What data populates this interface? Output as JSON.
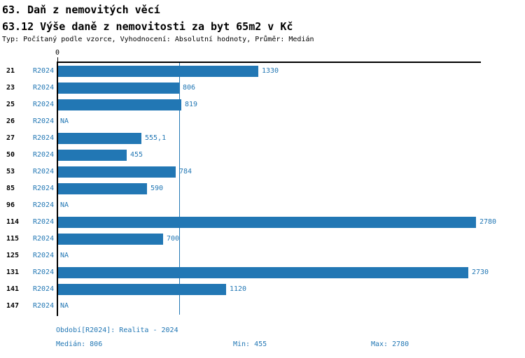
{
  "header": {
    "title1": "63. Daň z nemovitých věcí",
    "title2": "63.12 Výše daně z nemovitosti za byt 65m2 v Kč",
    "meta": "Typ: Počítaný podle vzorce, Vyhodnocení: Absolutní hodnoty, Průměr: Medián"
  },
  "chart_data": {
    "type": "bar",
    "orientation": "horizontal",
    "title": "63.12 Výše daně z nemovitosti za byt 65m2 v Kč",
    "series_label": "R2024",
    "categories": [
      "21",
      "23",
      "25",
      "26",
      "27",
      "50",
      "53",
      "85",
      "96",
      "114",
      "115",
      "125",
      "131",
      "141",
      "147"
    ],
    "values": [
      1330,
      806,
      819,
      null,
      555.1,
      455,
      784,
      590,
      null,
      2780,
      700,
      null,
      2730,
      1120,
      null
    ],
    "value_labels": [
      "1330",
      "806",
      "819",
      "NA",
      "555,1",
      "455",
      "784",
      "590",
      "NA",
      "2780",
      "700",
      "NA",
      "2730",
      "1120",
      "NA"
    ],
    "na_label": "NA",
    "median": 806,
    "axis": {
      "zero_label": "0",
      "x_min": 0,
      "x_max": 2818
    },
    "grid": false,
    "legend": "none",
    "colors": {
      "bar": "#2277b4",
      "blue_text": "#2277b4",
      "axis": "#000000"
    }
  },
  "footer": {
    "period": "Období[R2024]: Realita - 2024",
    "median": "Medián: 806",
    "min": "Min: 455",
    "max": "Max: 2780"
  }
}
